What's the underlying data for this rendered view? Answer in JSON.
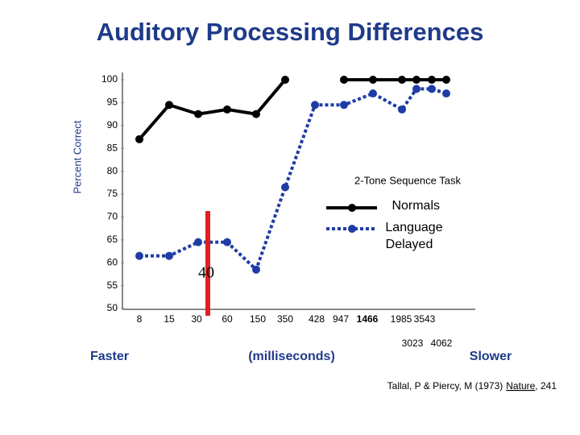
{
  "chart_data": {
    "type": "line",
    "title": "Auditory Processing Differences",
    "y_label": "Percent Correct",
    "legend_title": "2-Tone Sequence Task",
    "categories": [
      "8",
      "15",
      "30",
      "60",
      "150",
      "350",
      "428",
      "947",
      "1466",
      "1985",
      "3543",
      "3023",
      "4062"
    ],
    "x_unit": "(milliseconds)",
    "left_note": "Faster",
    "right_note": "Slower",
    "annotation": {
      "label": "40",
      "color": "#e02020"
    },
    "series": [
      {
        "name": "Normals",
        "color": "#000000",
        "values": [
          87,
          94.5,
          92.5,
          93.5,
          92.5,
          100,
          null,
          100,
          100,
          100,
          100,
          100,
          100
        ]
      },
      {
        "name": "Language Delayed",
        "color": "#1f3ca6",
        "values": [
          61.5,
          61.5,
          64.5,
          64.5,
          58.5,
          76.5,
          94.5,
          94.5,
          97,
          93.5,
          98,
          98,
          97
        ]
      }
    ],
    "ylim": [
      50,
      100
    ],
    "yticks": [
      50,
      55,
      60,
      65,
      70,
      75,
      80,
      85,
      90,
      95,
      100
    ],
    "citation": {
      "authors": "Tallal, P & Piercy, M (1973)",
      "journal": "Nature",
      "volume": ", 241"
    }
  }
}
